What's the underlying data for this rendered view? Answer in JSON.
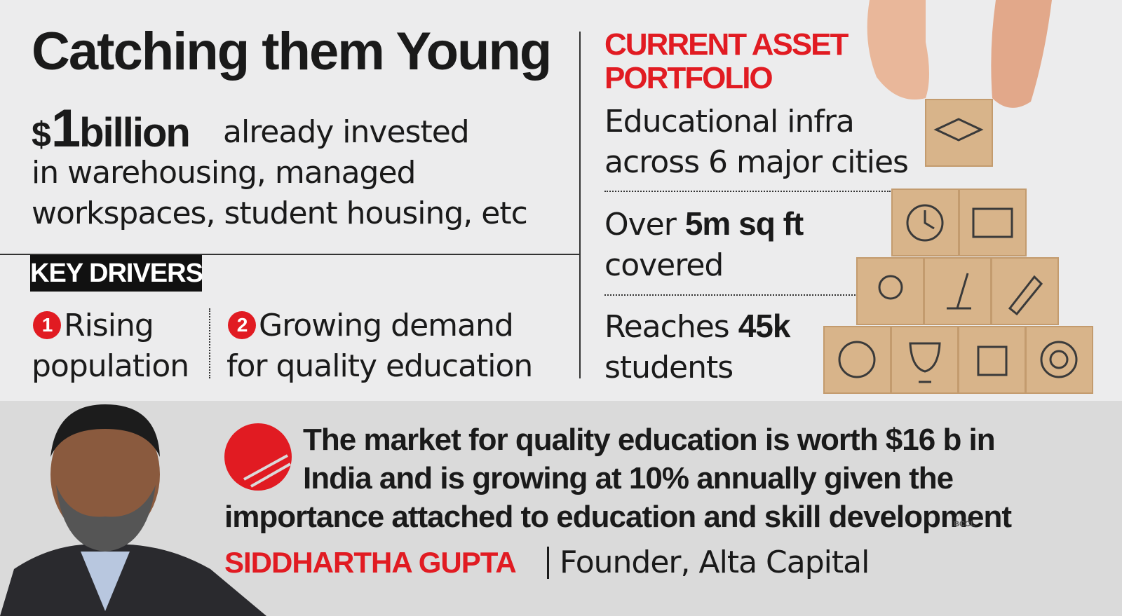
{
  "header": {
    "title": "Catching them Young"
  },
  "intro": {
    "currency": "$",
    "number": "1",
    "unit": "billion",
    "lines": [
      "already invested",
      "in warehousing, managed",
      "workspaces, student housing, etc"
    ]
  },
  "key_drivers": {
    "label": "KEY DRIVERS",
    "items": [
      {
        "number": "1",
        "lines": [
          "Rising",
          "population"
        ]
      },
      {
        "number": "2",
        "lines": [
          "Growing demand",
          "for quality education"
        ]
      }
    ]
  },
  "portfolio": {
    "title_lines": [
      "CURRENT ASSET",
      "PORTFOLIO"
    ],
    "items": [
      {
        "lines": [
          "Educational infra",
          "across 6 major cities"
        ]
      },
      {
        "prefix": "Over",
        "highlight": "5m sq ft",
        "suffix": "covered"
      },
      {
        "prefix": "Reaches",
        "highlight": "45k",
        "suffix": "students"
      }
    ]
  },
  "quote": {
    "lines": [
      "The market for quality education is worth $16 b in",
      "India and is growing at 10% annually given the",
      "importance attached to education and skill development"
    ],
    "name": "SIDDHARTHA GUPTA",
    "role": "Founder, Alta Capital"
  },
  "watermark": "BCCL"
}
